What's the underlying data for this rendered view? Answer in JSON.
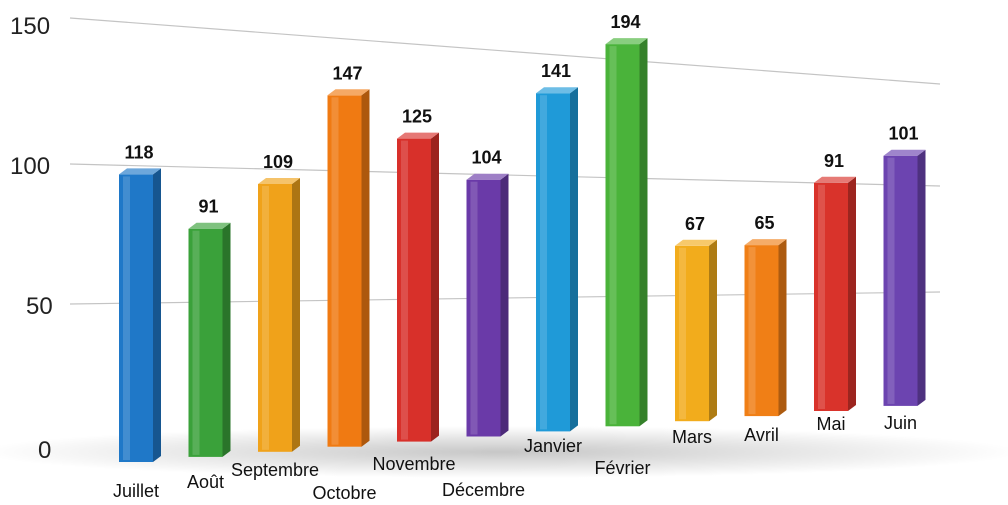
{
  "chart_data": {
    "type": "bar",
    "title": "",
    "xlabel": "",
    "ylabel": "",
    "ylim": [
      0,
      150
    ],
    "yticks": [
      "0",
      "50",
      "100",
      "150"
    ],
    "grid": true,
    "categories": [
      "Juillet",
      "Août",
      "Septembre",
      "Octobre",
      "Novembre",
      "Décembre",
      "Janvier",
      "Février",
      "Mars",
      "Avril",
      "Mai",
      "Juin"
    ],
    "values": [
      118,
      91,
      109,
      147,
      125,
      104,
      141,
      194,
      67,
      65,
      91,
      101
    ],
    "value_labels": [
      "118",
      "91",
      "109",
      "147",
      "125",
      "104",
      "141",
      "194",
      "67",
      "65",
      "91",
      "101"
    ],
    "colors": [
      "#1f78c8",
      "#3aa13a",
      "#f0a21a",
      "#f07a12",
      "#d8302a",
      "#6a3aa8",
      "#1f9ad8",
      "#4ab33a",
      "#f2ac1c",
      "#f07f16",
      "#d9332b",
      "#6c44b0"
    ]
  }
}
